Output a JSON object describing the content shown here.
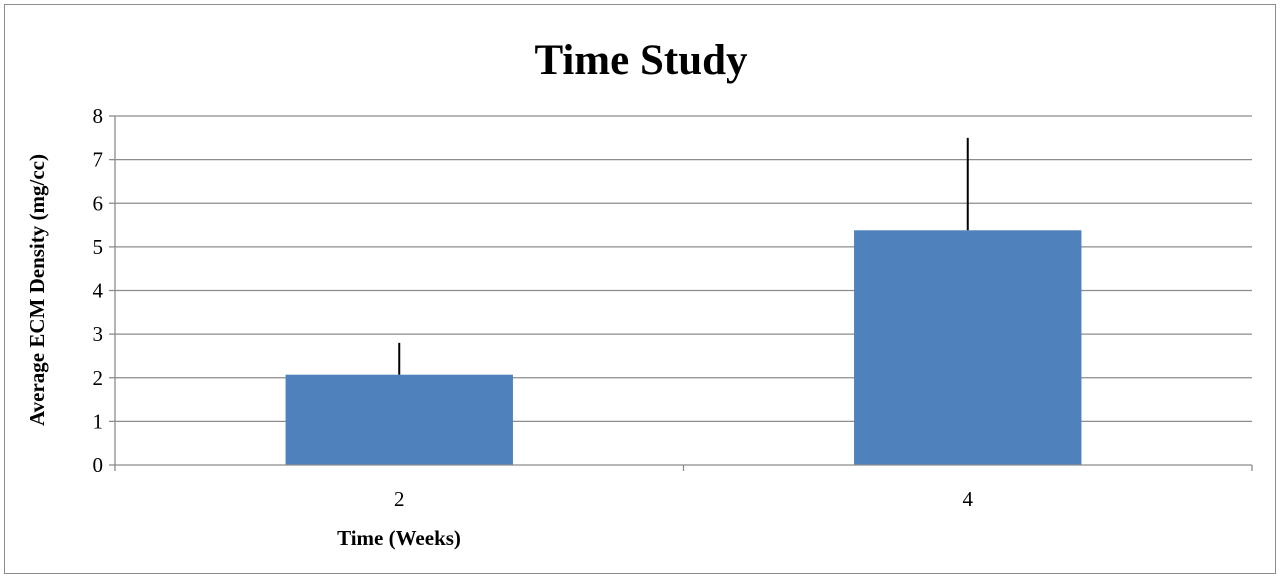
{
  "chart_data": {
    "type": "bar",
    "title": "Time Study",
    "xlabel": "Time (Weeks)",
    "ylabel": "Average ECM Density (mg/cc)",
    "categories": [
      "2",
      "4"
    ],
    "values": [
      2.07,
      5.38
    ],
    "error_plus": [
      0.73,
      2.12
    ],
    "ylim": [
      0,
      8
    ],
    "yticks": [
      "0",
      "1",
      "2",
      "3",
      "4",
      "5",
      "6",
      "7",
      "8"
    ],
    "grid": true,
    "legend": "none",
    "bar_color": "#4f81bd",
    "grid_color": "#8c8c8c",
    "error_bar_color": "#000000"
  }
}
